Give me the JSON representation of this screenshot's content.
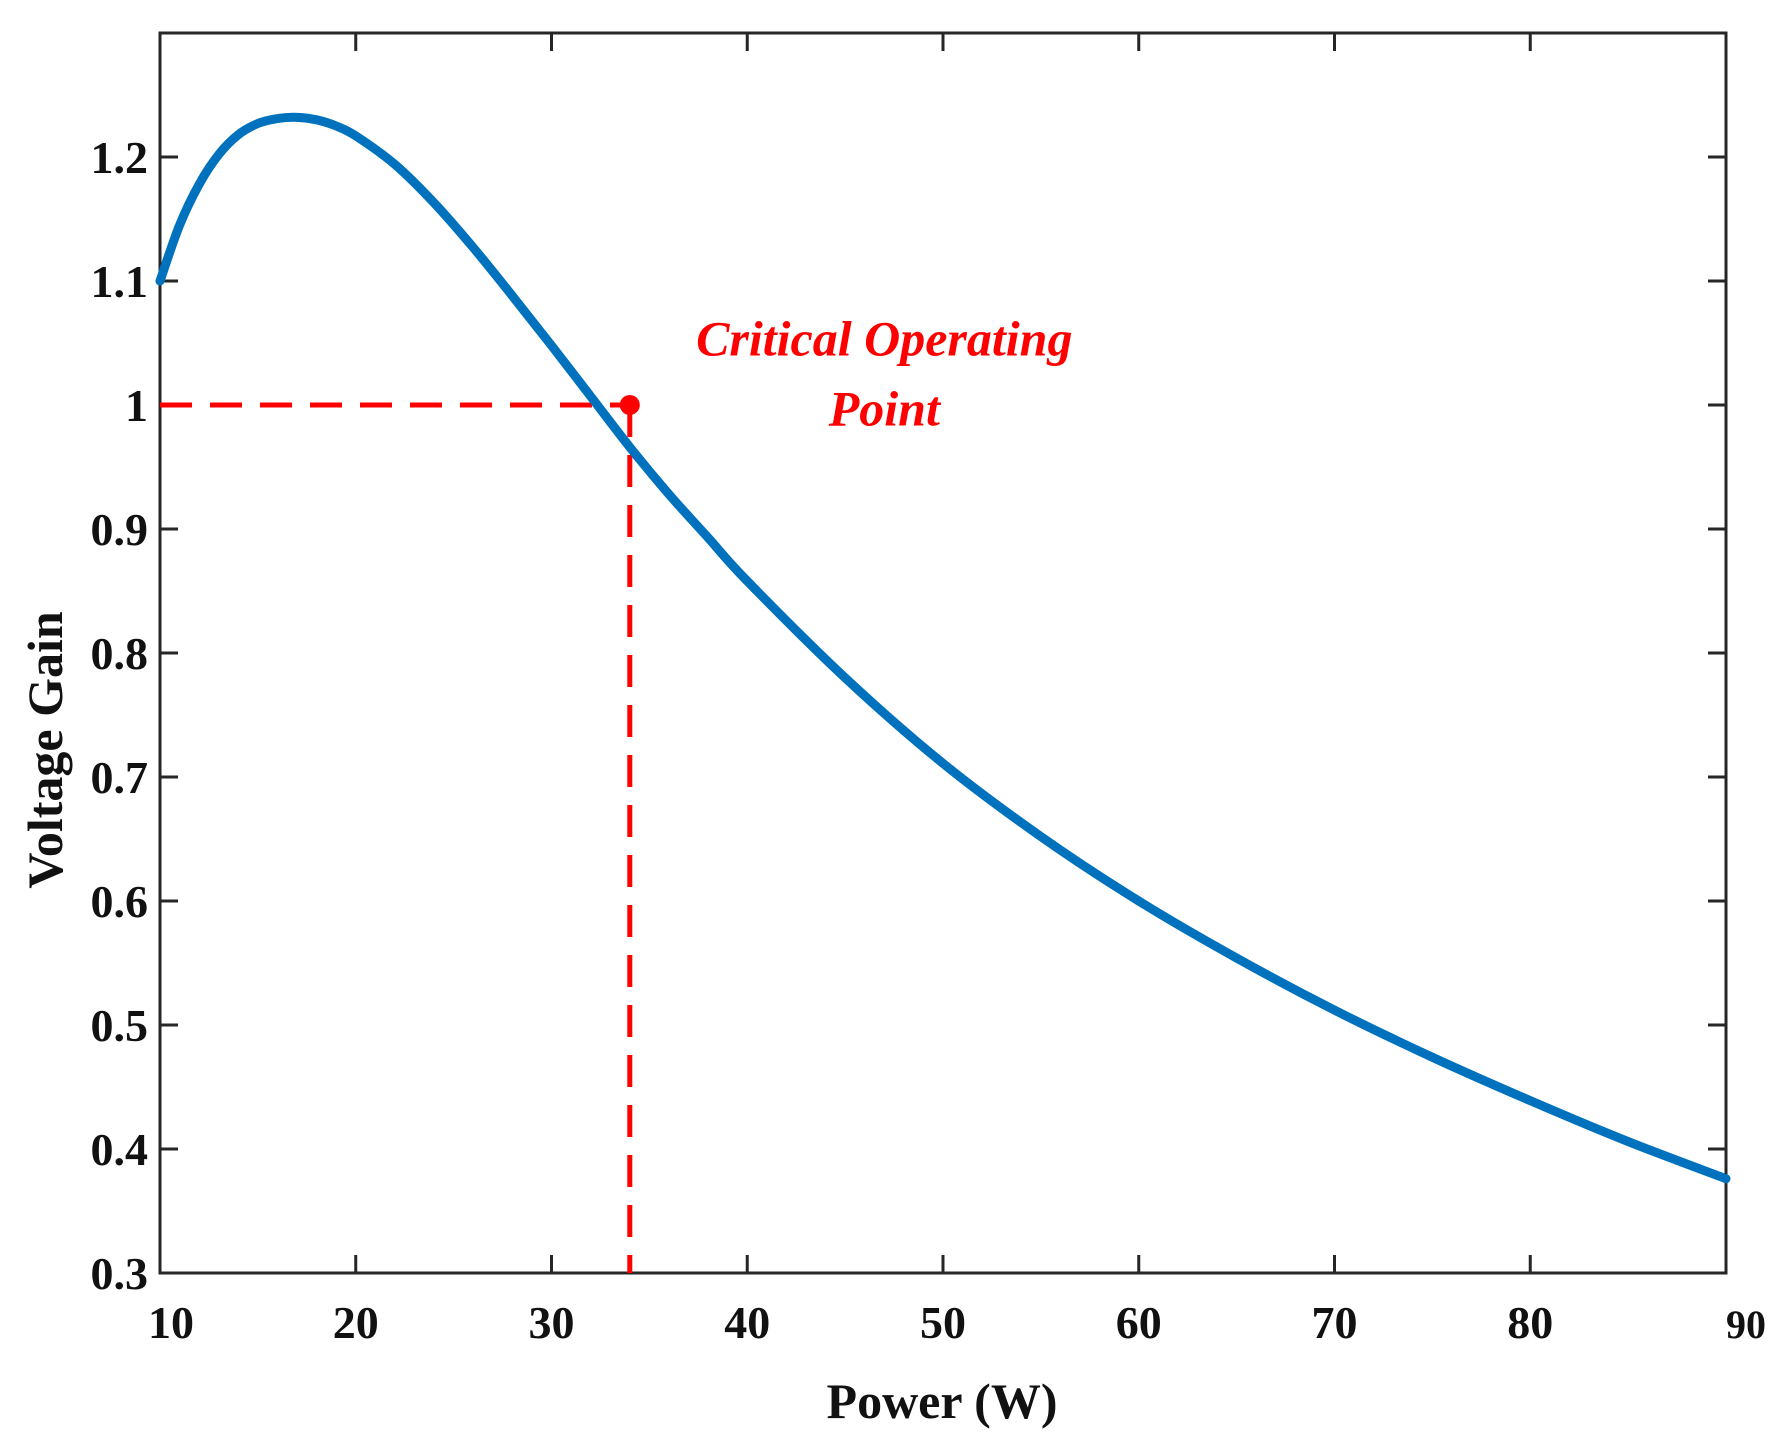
{
  "chart_data": {
    "type": "line",
    "title": "",
    "xlabel": "Power  (W)",
    "ylabel": "Voltage Gain",
    "xlim": [
      10,
      90
    ],
    "ylim": [
      0.3,
      1.3
    ],
    "xticks": [
      10,
      20,
      30,
      40,
      50,
      60,
      70,
      80,
      90
    ],
    "xtick_labels": [
      "10",
      "20",
      "30",
      "40",
      "50",
      "60",
      "70",
      "80",
      "90"
    ],
    "yticks": [
      0.3,
      0.4,
      0.5,
      0.6,
      0.7,
      0.8,
      0.9,
      1.0,
      1.1,
      1.2
    ],
    "ytick_labels": [
      "0.3",
      "0.4",
      "0.5",
      "0.6",
      "0.7",
      "0.8",
      "0.9",
      "1",
      "1.1",
      "1.2"
    ],
    "grid": false,
    "series": [
      {
        "name": "Voltage Gain",
        "color": "#0072BD",
        "x": [
          10,
          11,
          12,
          13,
          14,
          15,
          16,
          17,
          18,
          19,
          20,
          22,
          24,
          26,
          28,
          30,
          32,
          34,
          36,
          38,
          40,
          45,
          50,
          55,
          60,
          65,
          70,
          75,
          80,
          85,
          90
        ],
        "y": [
          1.1,
          1.145,
          1.178,
          1.202,
          1.218,
          1.227,
          1.231,
          1.232,
          1.23,
          1.225,
          1.217,
          1.194,
          1.163,
          1.127,
          1.088,
          1.048,
          1.007,
          0.966,
          0.928,
          0.893,
          0.858,
          0.78,
          0.711,
          0.652,
          0.6,
          0.554,
          0.512,
          0.474,
          0.439,
          0.406,
          0.376
        ]
      }
    ],
    "reference_lines": {
      "color": "#FF0000",
      "style": "dashed",
      "point": {
        "x": 34,
        "y": 1.0
      }
    },
    "annotations": [
      {
        "lines": [
          "Critical Operating",
          "Point"
        ],
        "color": "#FF0000",
        "style": "bold-italic",
        "x": 47,
        "y": 1.04
      }
    ]
  }
}
